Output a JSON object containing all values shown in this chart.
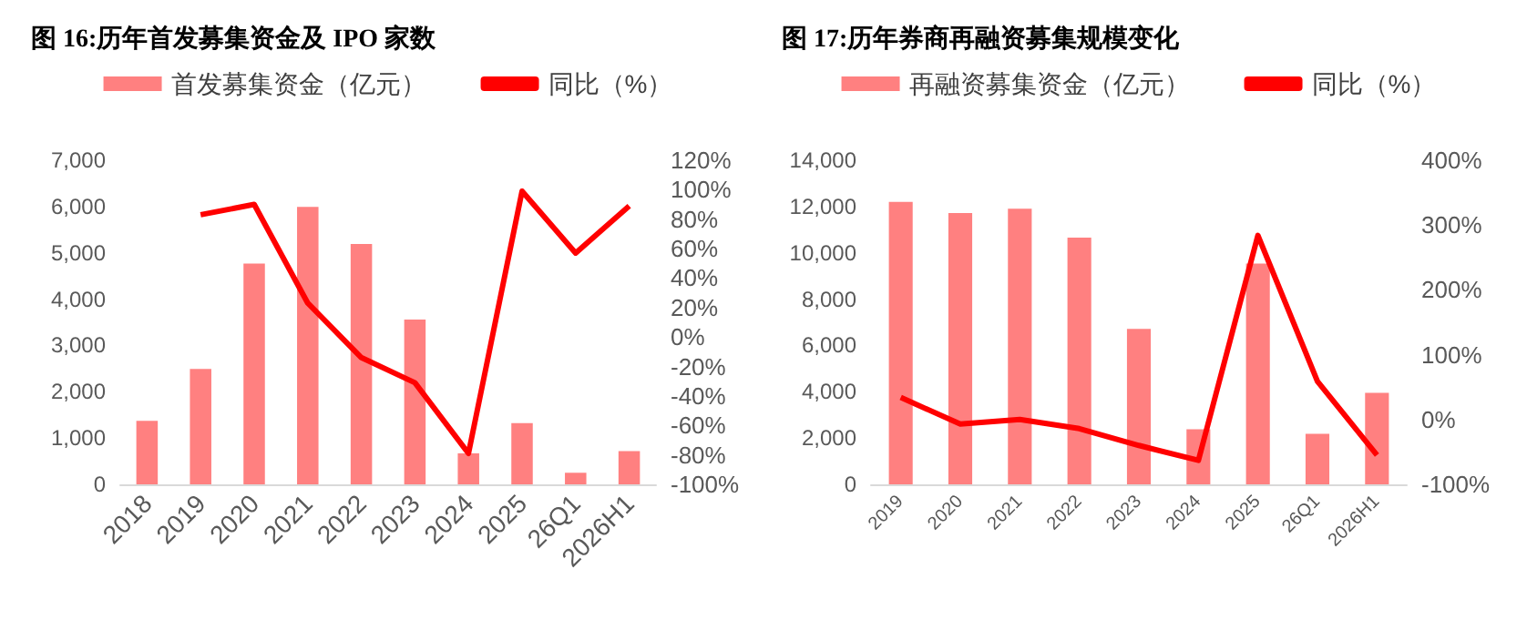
{
  "chart_data": [
    {
      "type": "bar",
      "title": "图 16:历年首发募集资金及 IPO 家数",
      "categories": [
        "2018",
        "2019",
        "2020",
        "2021",
        "2022",
        "2023",
        "2024",
        "2025",
        "26Q1",
        "2026H1"
      ],
      "series": [
        {
          "name": "首发募集资金（亿元）",
          "color": "#ff8080",
          "values": [
            1370,
            2490,
            4770,
            5990,
            5190,
            3560,
            670,
            1320,
            250,
            720
          ]
        },
        {
          "name": "同比（%）",
          "type": "line",
          "axis": "y2",
          "color": "#ff0000",
          "values": [
            null,
            83,
            90,
            23,
            -14,
            -31,
            -79,
            99,
            57,
            89
          ]
        }
      ],
      "ylim": [
        0,
        7000
      ],
      "yticks": [
        0,
        {
          "value": 1000,
          "label": "1,000"
        },
        {
          "value": 2000,
          "label": "2,000"
        },
        {
          "value": 3000,
          "label": "3,000"
        },
        {
          "value": 4000,
          "label": "4,000"
        },
        {
          "value": 5000,
          "label": "5,000"
        },
        {
          "value": 6000,
          "label": "6,000"
        },
        {
          "value": 7000,
          "label": "7,000"
        }
      ],
      "y2lim": [
        -100,
        120
      ],
      "y2ticks": [
        {
          "value": -100,
          "label": "-100%"
        },
        {
          "value": -80,
          "label": "-80%"
        },
        {
          "value": -60,
          "label": "-60%"
        },
        {
          "value": -40,
          "label": "-40%"
        },
        {
          "value": -20,
          "label": "-20%"
        },
        {
          "value": 0,
          "label": "0%"
        },
        {
          "value": 20,
          "label": "20%"
        },
        {
          "value": 40,
          "label": "40%"
        },
        {
          "value": 60,
          "label": "60%"
        },
        {
          "value": 80,
          "label": "80%"
        },
        {
          "value": 100,
          "label": "100%"
        },
        {
          "value": 120,
          "label": "120%"
        }
      ],
      "grid": false,
      "legend": "top",
      "marker": "none"
    },
    {
      "type": "bar",
      "title": "图 17:历年券商再融资募集规模变化",
      "categories": [
        "2019",
        "2020",
        "2021",
        "2022",
        "2023",
        "2024",
        "2025",
        "26Q1",
        "2026H1"
      ],
      "series": [
        {
          "name": "再融资募集资金（亿元）",
          "color": "#ff8080",
          "values": [
            12200,
            11720,
            11910,
            10660,
            6710,
            2380,
            9540,
            2180,
            3950
          ]
        },
        {
          "name": "同比（%）",
          "type": "line",
          "axis": "y2",
          "color": "#ff0000",
          "values": [
            34,
            -7,
            0,
            -14,
            -40,
            -63,
            284,
            59,
            -55
          ]
        }
      ],
      "ylim": [
        0,
        14000
      ],
      "yticks": [
        0,
        {
          "value": 2000,
          "label": "2,000"
        },
        {
          "value": 4000,
          "label": "4,000"
        },
        {
          "value": 6000,
          "label": "6,000"
        },
        {
          "value": 8000,
          "label": "8,000"
        },
        {
          "value": 10000,
          "label": "10,000"
        },
        {
          "value": 12000,
          "label": "12,000"
        },
        {
          "value": 14000,
          "label": "14,000"
        }
      ],
      "y2lim": [
        -100,
        400
      ],
      "y2ticks": [
        {
          "value": -100,
          "label": "-100%"
        },
        {
          "value": 0,
          "label": "0%"
        },
        {
          "value": 100,
          "label": "100%"
        },
        {
          "value": 200,
          "label": "200%"
        },
        {
          "value": 300,
          "label": "300%"
        },
        {
          "value": 400,
          "label": "400%"
        }
      ],
      "grid": false,
      "legend": "top",
      "marker": "none"
    }
  ]
}
